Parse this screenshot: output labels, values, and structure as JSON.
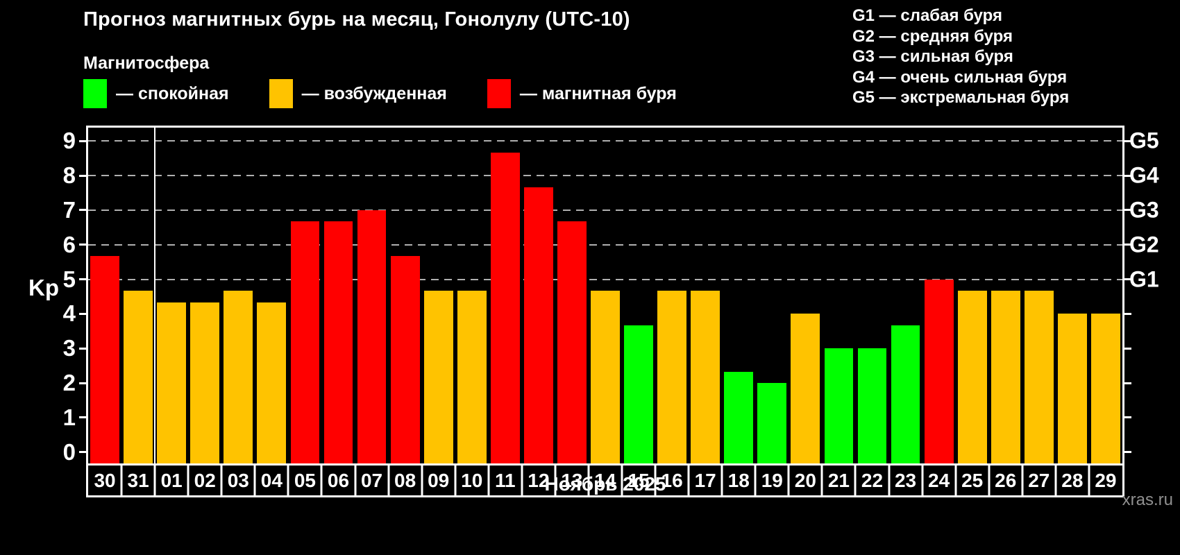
{
  "page": {
    "background": "#000000"
  },
  "header": {
    "title": "Прогноз магнитных бурь на месяц, Гонолулу (UTC-10)",
    "subtitle": "Магнитосфера"
  },
  "legend": {
    "items": [
      {
        "state": "calm",
        "label": "— спокойная",
        "color": "#00FF00"
      },
      {
        "state": "excited",
        "label": "— возбужденная",
        "color": "#FFC300"
      },
      {
        "state": "storm",
        "label": "— магнитная буря",
        "color": "#FF0000"
      }
    ]
  },
  "g_scale": {
    "lines": [
      "G1 — слабая буря",
      "G2 — средняя буря",
      "G3 — сильная буря",
      "G4 — очень сильная буря",
      "G5 — экстремальная буря"
    ]
  },
  "axes": {
    "y_label": "Kp",
    "y_ticks": [
      0,
      1,
      2,
      3,
      4,
      5,
      6,
      7,
      8,
      9
    ],
    "right_axis_labels": [
      {
        "kp": 5,
        "label": "G1"
      },
      {
        "kp": 6,
        "label": "G2"
      },
      {
        "kp": 7,
        "label": "G3"
      },
      {
        "kp": 8,
        "label": "G4"
      },
      {
        "kp": 9,
        "label": "G5"
      }
    ]
  },
  "footer": {
    "month_label": "Ноябрь 2025",
    "watermark": "xras.ru"
  },
  "chart_data": {
    "type": "bar",
    "title": "Прогноз магнитных бурь на месяц, Гонолулу (UTC-10)",
    "xlabel": "Ноябрь 2025",
    "ylabel": "Kp",
    "ylim": [
      0,
      9
    ],
    "grid": "dashed horizontal at Kp 5-9 (G1-G5)",
    "grid_levels": [
      5,
      6,
      7,
      8,
      9
    ],
    "month_boundary_after_index": 1,
    "categories": [
      "30",
      "31",
      "01",
      "02",
      "03",
      "04",
      "05",
      "06",
      "07",
      "08",
      "09",
      "10",
      "11",
      "12",
      "13",
      "14",
      "15",
      "16",
      "17",
      "18",
      "19",
      "20",
      "21",
      "22",
      "23",
      "24",
      "25",
      "26",
      "27",
      "28",
      "29"
    ],
    "values": [
      5.67,
      4.67,
      4.33,
      4.33,
      4.67,
      4.33,
      6.67,
      6.67,
      7,
      5.67,
      4.67,
      4.67,
      8.67,
      7.67,
      6.67,
      4.67,
      3.67,
      4.67,
      4.67,
      2.33,
      2,
      4,
      3,
      3,
      3.67,
      5,
      4.67,
      4.67,
      4.67,
      4,
      4
    ],
    "states": [
      "storm",
      "excited",
      "excited",
      "excited",
      "excited",
      "excited",
      "storm",
      "storm",
      "storm",
      "storm",
      "excited",
      "excited",
      "storm",
      "storm",
      "storm",
      "excited",
      "calm",
      "excited",
      "excited",
      "calm",
      "calm",
      "excited",
      "calm",
      "calm",
      "calm",
      "storm",
      "excited",
      "excited",
      "excited",
      "excited",
      "excited"
    ],
    "colors": {
      "calm": "#00FF00",
      "excited": "#FFC300",
      "storm": "#FF0000"
    }
  }
}
